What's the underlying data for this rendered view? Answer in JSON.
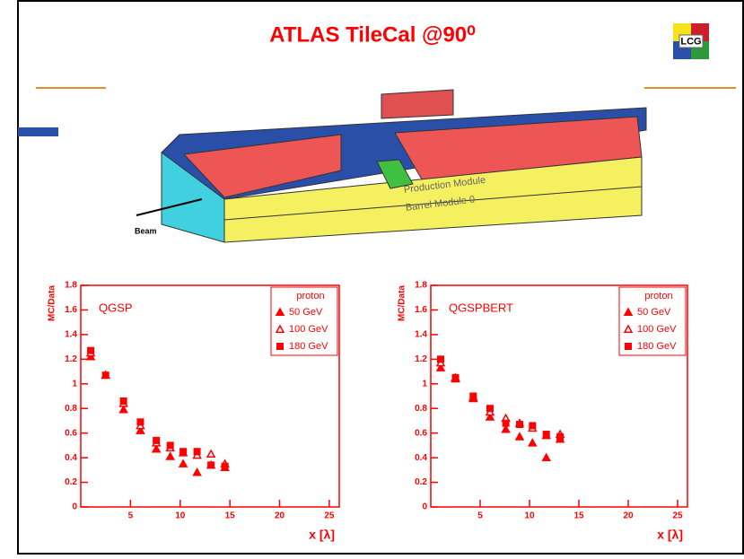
{
  "title": "ATLAS TileCal @90⁰",
  "logo": "LCG",
  "figure": {
    "labels": [
      "Production Module",
      "Barrel Module 0",
      "Beam"
    ]
  },
  "chart_data": [
    {
      "type": "scatter",
      "annotation": "QGSP",
      "y_label": "MC/Data",
      "x_label": "x [λ]",
      "xlim": [
        0,
        26
      ],
      "ylim": [
        0,
        1.8
      ],
      "xticks": [
        5,
        10,
        15,
        20,
        25
      ],
      "yticks": [
        0,
        0.2,
        0.4,
        0.6,
        0.8,
        1,
        1.2,
        1.4,
        1.6,
        1.8
      ],
      "legend_title": "proton",
      "legend": "upper right",
      "x": [
        1,
        2.5,
        4.3,
        6,
        7.6,
        9,
        10.3,
        11.7,
        13.1,
        14.5
      ],
      "series": [
        {
          "name": "50 GeV",
          "color": "#ff0000",
          "marker": "triangle",
          "values": [
            1.22,
            1.07,
            0.79,
            0.62,
            0.47,
            0.41,
            0.35,
            0.28,
            0.34,
            0.32
          ]
        },
        {
          "name": "100 GeV",
          "color": "#ff0000",
          "marker": "open-triangle",
          "values": [
            1.25,
            1.07,
            0.84,
            0.66,
            0.52,
            0.48,
            0.44,
            0.42,
            0.43,
            0.35
          ]
        },
        {
          "name": "180 GeV",
          "color": "#ff0000",
          "marker": "square",
          "values": [
            1.27,
            1.07,
            0.86,
            0.69,
            0.54,
            0.5,
            0.45,
            0.45,
            0.34,
            0.33
          ]
        }
      ]
    },
    {
      "type": "scatter",
      "annotation": "QGSPBERT",
      "y_label": "MC/Data",
      "x_label": "x [λ]",
      "xlim": [
        0,
        26
      ],
      "ylim": [
        0,
        1.8
      ],
      "xticks": [
        5,
        10,
        15,
        20,
        25
      ],
      "yticks": [
        0,
        0.2,
        0.4,
        0.6,
        0.8,
        1,
        1.2,
        1.4,
        1.6,
        1.8
      ],
      "legend_title": "proton",
      "legend": "upper right",
      "x": [
        1,
        2.5,
        4.3,
        6,
        7.6,
        9,
        10.3,
        11.7,
        13.1
      ],
      "series": [
        {
          "name": "50 GeV",
          "color": "#ff0000",
          "marker": "triangle",
          "values": [
            1.13,
            1.04,
            0.88,
            0.73,
            0.63,
            0.57,
            0.52,
            0.4,
            0.55
          ]
        },
        {
          "name": "100 GeV",
          "color": "#ff0000",
          "marker": "open-triangle",
          "values": [
            1.17,
            1.05,
            0.89,
            0.77,
            0.72,
            0.68,
            0.64,
            0.58,
            0.59
          ]
        },
        {
          "name": "180 GeV",
          "color": "#ff0000",
          "marker": "square",
          "values": [
            1.2,
            1.05,
            0.9,
            0.8,
            0.68,
            0.67,
            0.66,
            0.59,
            0.57
          ]
        }
      ]
    }
  ]
}
